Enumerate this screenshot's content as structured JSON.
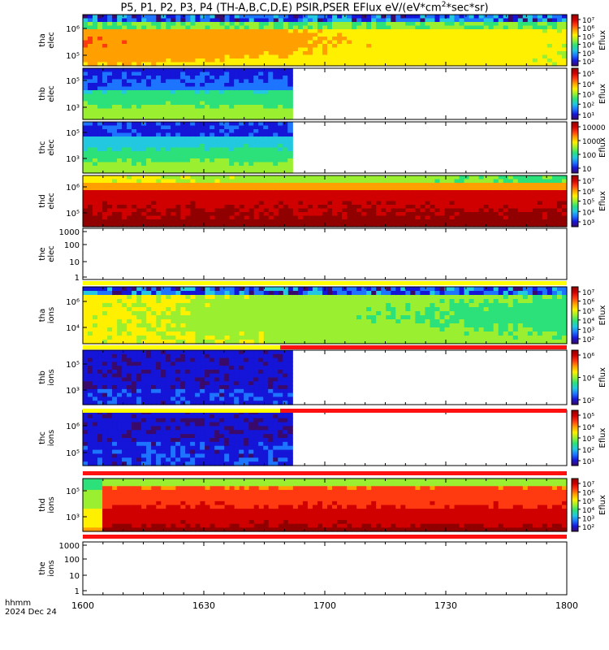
{
  "title_main": "P5, P1, P2, P3, P4 (TH-A,B,C,D,E) PSIR,PSER EFlux eV/(eV*cm",
  "title_sup": "2",
  "title_end": "*sec*sr)",
  "footer": {
    "hhmm": "hhmm",
    "date": "2024 Dec 24"
  },
  "colorbar_label": "Eflux",
  "chart_data": [
    {
      "type": "heatmap",
      "name": "tha elec",
      "ylabel": [
        "tha",
        "elec"
      ],
      "yticks": [
        "10⁶",
        "10⁵"
      ],
      "colorbar_ticks": [
        "10⁷",
        "10⁶",
        "10⁵",
        "10⁴",
        "10³",
        "10²"
      ],
      "data_end": "18:00"
    },
    {
      "type": "heatmap",
      "name": "thb elec",
      "ylabel": [
        "thb",
        "elec"
      ],
      "yticks": [
        "10⁵",
        "10³"
      ],
      "colorbar_ticks": [
        "10⁵",
        "10⁴",
        "10³",
        "10²",
        "10¹"
      ],
      "data_end": "16:52"
    },
    {
      "type": "heatmap",
      "name": "thc elec",
      "ylabel": [
        "thc",
        "elec"
      ],
      "yticks": [
        "10⁵",
        "10³"
      ],
      "colorbar_ticks": [
        "10000",
        "1000",
        "100",
        "10"
      ],
      "data_end": "16:52"
    },
    {
      "type": "heatmap",
      "name": "thd elec",
      "ylabel": [
        "thd",
        "elec"
      ],
      "yticks": [
        "10⁶",
        "10⁵"
      ],
      "colorbar_ticks": [
        "10⁷",
        "10⁶",
        "10⁵",
        "10⁴",
        "10³"
      ],
      "data_end": "18:00"
    },
    {
      "type": "heatmap",
      "name": "the elec",
      "ylabel": [
        "the",
        "elec"
      ],
      "yticks": [
        "1000",
        "100",
        "10",
        "1"
      ],
      "colorbar_ticks": [],
      "data_end": "none"
    },
    {
      "type": "heatmap",
      "name": "tha ions",
      "ylabel": [
        "tha",
        "ions"
      ],
      "yticks": [
        "10⁶",
        "10⁴"
      ],
      "colorbar_ticks": [
        "10⁷",
        "10⁶",
        "10⁵",
        "10⁴",
        "10³",
        "10²"
      ],
      "data_end": "18:00"
    },
    {
      "type": "heatmap",
      "name": "thb ions",
      "ylabel": [
        "thb",
        "ions"
      ],
      "yticks": [
        "10⁵",
        "10³"
      ],
      "colorbar_ticks": [
        "10⁶",
        "10⁴",
        "10²"
      ],
      "data_end": "16:52"
    },
    {
      "type": "heatmap",
      "name": "thc ions",
      "ylabel": [
        "thc",
        "ions"
      ],
      "yticks": [
        "10⁶",
        "10⁵"
      ],
      "colorbar_ticks": [
        "10⁵",
        "10⁴",
        "10³",
        "10²",
        "10¹"
      ],
      "data_end": "16:52"
    },
    {
      "type": "heatmap",
      "name": "thd ions",
      "ylabel": [
        "thd",
        "ions"
      ],
      "yticks": [
        "10⁵",
        "10³"
      ],
      "colorbar_ticks": [
        "10⁷",
        "10⁶",
        "10⁵",
        "10⁴",
        "10³",
        "10²"
      ],
      "data_end": "18:00"
    },
    {
      "type": "heatmap",
      "name": "the ions",
      "ylabel": [
        "the",
        "ions"
      ],
      "yticks": [
        "1000",
        "100",
        "10",
        "1"
      ],
      "colorbar_ticks": [],
      "data_end": "none"
    }
  ],
  "xaxis": {
    "ticks": [
      "1600",
      "1630",
      "1700",
      "1730",
      "1800"
    ],
    "range": [
      "16:00",
      "18:00"
    ]
  },
  "colormap": [
    "#3a0a6b",
    "#1515d8",
    "#1d74ff",
    "#22c8e0",
    "#2ce07a",
    "#9af030",
    "#fff000",
    "#ffa000",
    "#ff3a10",
    "#d00000",
    "#900000"
  ]
}
